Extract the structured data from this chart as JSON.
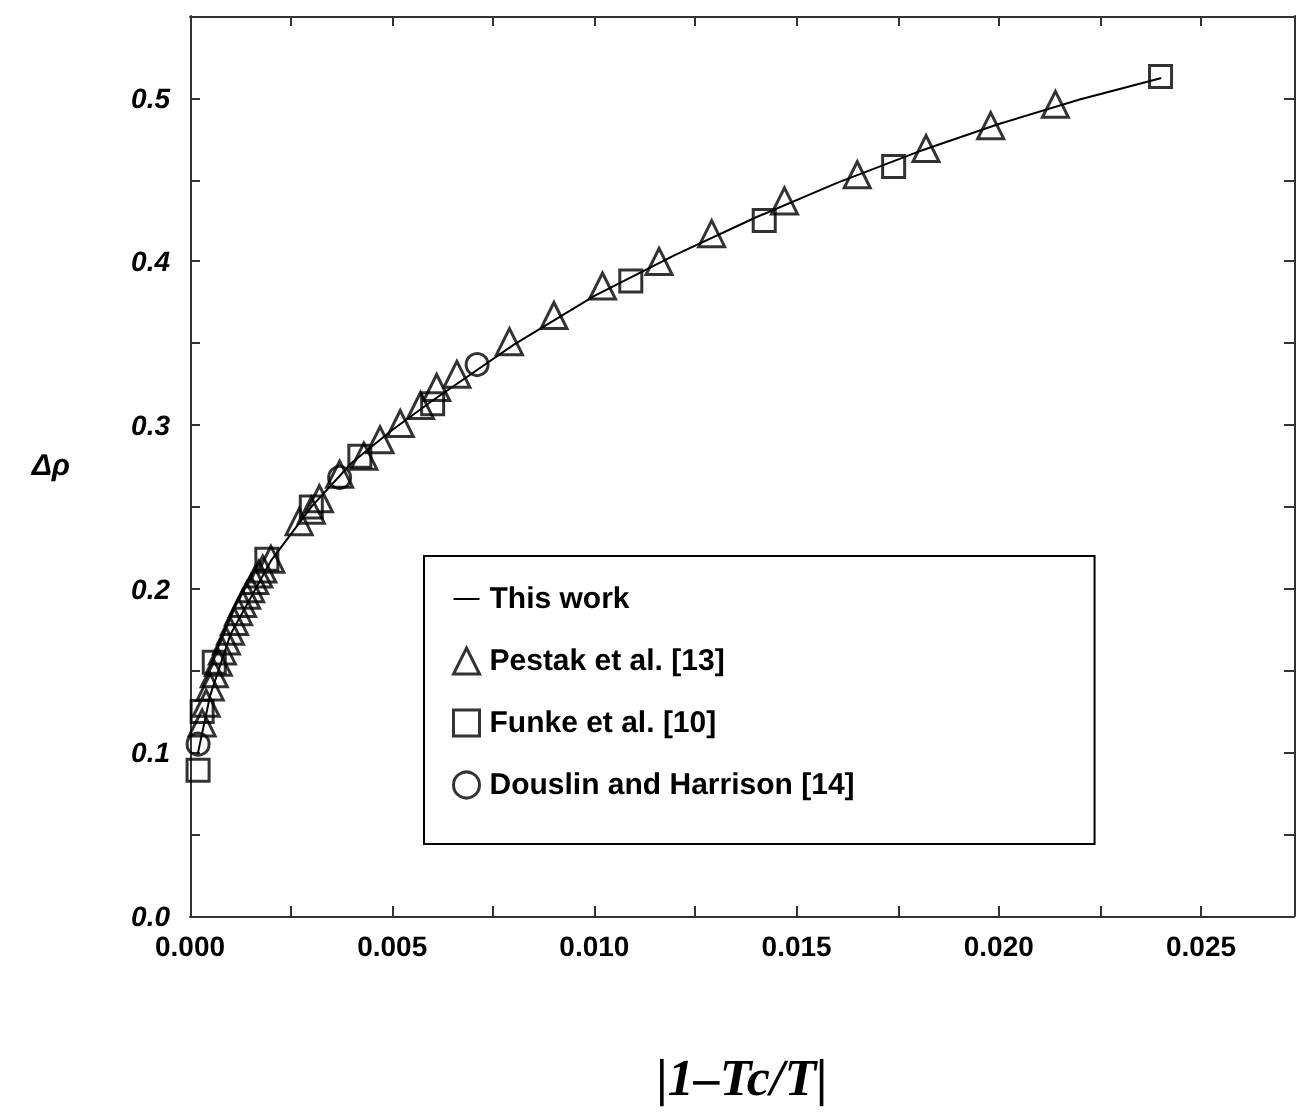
{
  "chart_data": {
    "type": "scatter",
    "xlabel": "|1–Tc/T|",
    "ylabel": "Δρ",
    "xlim": [
      0,
      0.0273
    ],
    "ylim": [
      0,
      0.55
    ],
    "xticks": [
      {
        "value": 0,
        "label": "0.000"
      },
      0.005,
      {
        "value": 0.01,
        "label": "0.010"
      },
      0.015,
      {
        "value": 0.02,
        "label": "0.020"
      },
      0.025
    ],
    "yticks": [
      {
        "value": 0,
        "label": "0.0"
      },
      0.1,
      0.2,
      0.3,
      0.4,
      0.5
    ],
    "grid": false,
    "legend": "bottom",
    "series": [
      {
        "name": "This work",
        "type": "line",
        "color": "#000000",
        "marker": "none",
        "line_style": "solid",
        "x": [
          0.0002,
          0.0005,
          0.001,
          0.002,
          0.003,
          0.004,
          0.005,
          0.006,
          0.007,
          0.008,
          0.01,
          0.012,
          0.014,
          0.016,
          0.018,
          0.02,
          0.022,
          0.024
        ],
        "values": [
          0.1,
          0.135,
          0.172,
          0.217,
          0.25,
          0.277,
          0.297,
          0.315,
          0.332,
          0.349,
          0.379,
          0.404,
          0.427,
          0.448,
          0.467,
          0.484,
          0.499,
          0.512
        ]
      },
      {
        "name": "Pestak et al. [13]",
        "color": "#000000",
        "marker": "triangle",
        "x": [
          0.0003,
          0.0004,
          0.0005,
          0.0006,
          0.0007,
          0.0008,
          0.0009,
          0.001,
          0.0011,
          0.0012,
          0.0013,
          0.0014,
          0.0015,
          0.0016,
          0.0017,
          0.0018,
          0.002,
          0.0027,
          0.003,
          0.0032,
          0.0037,
          0.0043,
          0.0047,
          0.0052,
          0.0057,
          0.0061,
          0.0066,
          0.0079,
          0.009,
          0.0102,
          0.0116,
          0.0129,
          0.0147,
          0.0165,
          0.0182,
          0.0198,
          0.0214
        ],
        "values": [
          0.118,
          0.13,
          0.14,
          0.148,
          0.155,
          0.162,
          0.168,
          0.174,
          0.18,
          0.186,
          0.191,
          0.196,
          0.2,
          0.205,
          0.209,
          0.212,
          0.218,
          0.241,
          0.248,
          0.255,
          0.27,
          0.281,
          0.291,
          0.301,
          0.312,
          0.323,
          0.331,
          0.351,
          0.367,
          0.385,
          0.4,
          0.417,
          0.437,
          0.453,
          0.469,
          0.483,
          0.496
        ]
      },
      {
        "name": "Funke et al. [10]",
        "color": "#000000",
        "marker": "square",
        "x": [
          0.0002,
          0.0003,
          0.0006,
          0.0019,
          0.003,
          0.0042,
          0.006,
          0.0109,
          0.0142,
          0.0174,
          0.024
        ],
        "values": [
          0.089,
          0.125,
          0.155,
          0.218,
          0.25,
          0.281,
          0.313,
          0.388,
          0.425,
          0.458,
          0.513
        ]
      },
      {
        "name": "Douslin and Harrison [14]",
        "color": "#000000",
        "marker": "circle",
        "x": [
          0.0002,
          0.0037,
          0.0071
        ],
        "values": [
          0.105,
          0.268,
          0.337
        ]
      }
    ]
  }
}
